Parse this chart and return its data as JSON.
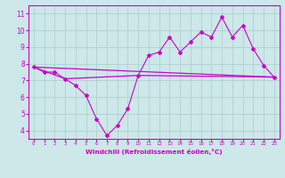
{
  "xlabel": "Windchill (Refroidissement éolien,°C)",
  "bg_color": "#cce8e8",
  "grid_color": "#aacccc",
  "line_color": "#cc00cc",
  "line1_x": [
    0,
    1,
    2,
    3,
    4,
    5,
    6,
    7,
    8,
    9,
    10,
    11,
    12,
    13,
    14,
    15,
    16,
    17,
    18,
    19,
    20,
    21,
    22,
    23
  ],
  "line1_y": [
    7.8,
    7.5,
    7.5,
    7.1,
    6.7,
    6.1,
    4.7,
    3.7,
    4.3,
    5.3,
    7.3,
    8.5,
    8.7,
    9.6,
    8.7,
    9.3,
    9.9,
    9.6,
    10.8,
    9.6,
    10.3,
    8.9,
    7.9,
    7.2
  ],
  "line2_x": [
    0,
    3,
    10,
    23
  ],
  "line2_y": [
    7.8,
    7.1,
    7.3,
    7.2
  ],
  "line3_x": [
    0,
    23
  ],
  "line3_y": [
    7.8,
    7.2
  ],
  "ylim": [
    3.5,
    11.5
  ],
  "xlim": [
    -0.5,
    23.5
  ],
  "yticks": [
    4,
    5,
    6,
    7,
    8,
    9,
    10,
    11
  ],
  "xticks": [
    0,
    1,
    2,
    3,
    4,
    5,
    6,
    7,
    8,
    9,
    10,
    11,
    12,
    13,
    14,
    15,
    16,
    17,
    18,
    19,
    20,
    21,
    22,
    23
  ]
}
